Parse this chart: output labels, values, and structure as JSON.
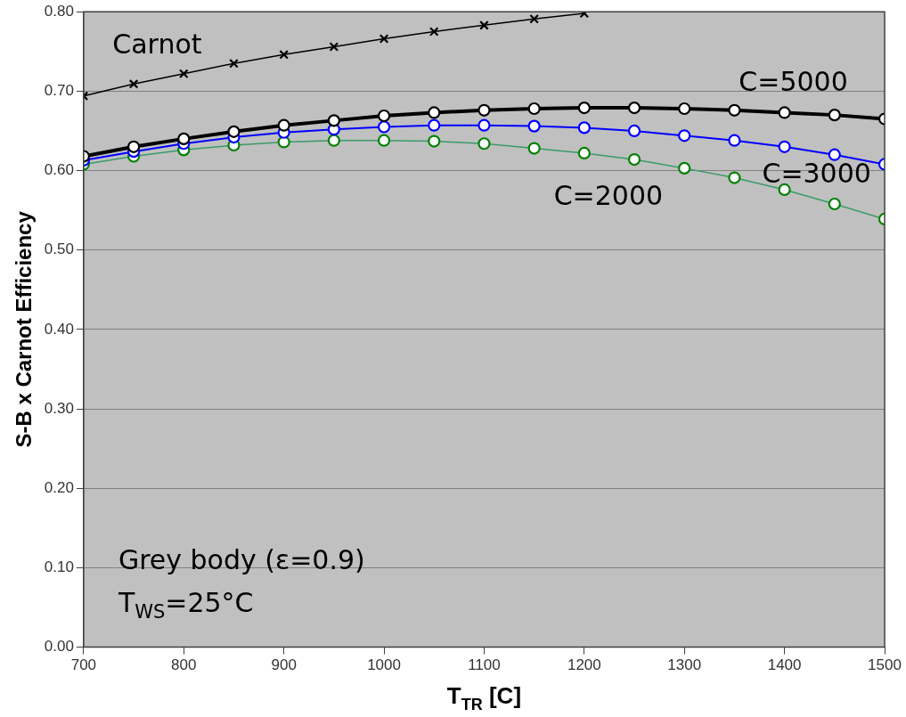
{
  "chart_data": {
    "type": "line",
    "xlabel": "T$_{TR}$ [C]",
    "ylabel": "S-B x Carnot Efficiency",
    "xlim": [
      700,
      1500
    ],
    "xticks": [
      700,
      800,
      900,
      1000,
      1100,
      1200,
      1300,
      1400,
      1500
    ],
    "ylim": [
      0,
      0.8
    ],
    "yticks": [
      {
        "value": 0,
        "label": "0.00"
      },
      {
        "value": 0.1,
        "label": "0.10"
      },
      {
        "value": 0.2,
        "label": "0.20"
      },
      {
        "value": 0.3,
        "label": "0.30"
      },
      {
        "value": 0.4,
        "label": "0.40"
      },
      {
        "value": 0.5,
        "label": "0.50"
      },
      {
        "value": 0.6,
        "label": "0.60"
      },
      {
        "value": 0.7,
        "label": "0.70"
      },
      {
        "value": 0.8,
        "label": "0.80"
      }
    ],
    "grid": "y",
    "legend": false,
    "series": [
      {
        "name": "Carnot",
        "color": "#000000",
        "marker": "cross",
        "x": [
          700,
          750,
          800,
          850,
          900,
          950,
          1000,
          1050,
          1100,
          1150,
          1200
        ],
        "values": [
          0.694,
          0.709,
          0.722,
          0.735,
          0.746,
          0.756,
          0.766,
          0.775,
          0.783,
          0.791,
          0.798
        ]
      },
      {
        "name": "C=5000",
        "color": "#000000",
        "marker": "circle",
        "x": [
          700,
          750,
          800,
          850,
          900,
          950,
          1000,
          1050,
          1100,
          1150,
          1200,
          1250,
          1300,
          1350,
          1400,
          1450,
          1500
        ],
        "values": [
          0.618,
          0.63,
          0.64,
          0.649,
          0.657,
          0.663,
          0.669,
          0.673,
          0.676,
          0.678,
          0.679,
          0.679,
          0.678,
          0.676,
          0.673,
          0.67,
          0.665
        ]
      },
      {
        "name": "C=3000",
        "color": "#0000ff",
        "marker": "circle",
        "x": [
          700,
          750,
          800,
          850,
          900,
          950,
          1000,
          1050,
          1100,
          1150,
          1200,
          1250,
          1300,
          1350,
          1400,
          1450,
          1500
        ],
        "values": [
          0.613,
          0.624,
          0.634,
          0.642,
          0.648,
          0.652,
          0.655,
          0.657,
          0.657,
          0.656,
          0.654,
          0.65,
          0.644,
          0.638,
          0.63,
          0.62,
          0.608
        ]
      },
      {
        "name": "C=2000",
        "color": "#008000",
        "marker": "circle",
        "x": [
          700,
          750,
          800,
          850,
          900,
          950,
          1000,
          1050,
          1100,
          1150,
          1200,
          1250,
          1300,
          1350,
          1400,
          1450,
          1500
        ],
        "values": [
          0.608,
          0.618,
          0.626,
          0.632,
          0.636,
          0.638,
          0.638,
          0.637,
          0.634,
          0.628,
          0.622,
          0.614,
          0.603,
          0.591,
          0.576,
          0.558,
          0.539
        ]
      }
    ],
    "annotations": [
      "Grey body (ε=0.9)",
      "T$_{WS}$=25°C"
    ]
  }
}
